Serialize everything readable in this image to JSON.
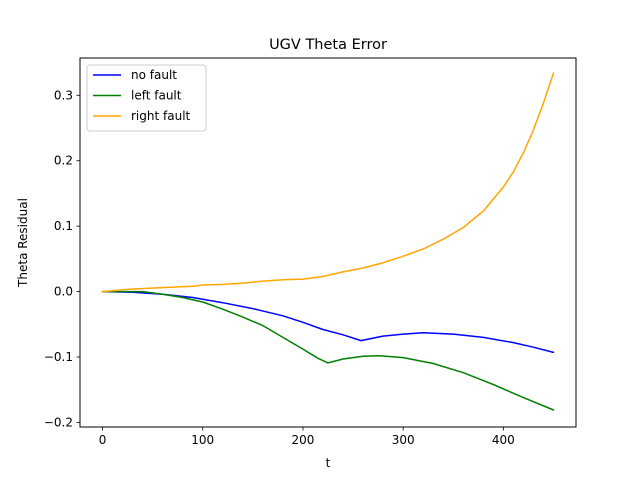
{
  "chart_data": {
    "type": "line",
    "title": "UGV Theta Error",
    "xlabel": "t",
    "ylabel": "Theta Residual",
    "xlim": [
      -22.5,
      472.5
    ],
    "ylim": [
      -0.207,
      0.357
    ],
    "xticks": [
      0,
      100,
      200,
      300,
      400
    ],
    "yticks": [
      -0.2,
      -0.1,
      0.0,
      0.1,
      0.2,
      0.3
    ],
    "ytick_labels": [
      "−0.2",
      "−0.1",
      "0.0",
      "0.1",
      "0.2",
      "0.3"
    ],
    "grid": false,
    "legend_position": "top-left",
    "series": [
      {
        "name": "no fault",
        "color": "#0000ff",
        "x": [
          0,
          30,
          60,
          90,
          120,
          150,
          180,
          200,
          220,
          240,
          258,
          280,
          300,
          320,
          350,
          380,
          410,
          430,
          450
        ],
        "y": [
          0.0,
          -0.001,
          -0.004,
          -0.009,
          -0.017,
          -0.026,
          -0.037,
          -0.047,
          -0.058,
          -0.066,
          -0.075,
          -0.068,
          -0.065,
          -0.063,
          -0.065,
          -0.07,
          -0.078,
          -0.085,
          -0.093
        ]
      },
      {
        "name": "left fault",
        "color": "#008000",
        "x": [
          0,
          20,
          40,
          60,
          80,
          100,
          120,
          140,
          160,
          180,
          200,
          215,
          225,
          240,
          260,
          275,
          300,
          330,
          360,
          390,
          420,
          450
        ],
        "y": [
          0.0,
          0.0,
          0.0,
          -0.004,
          -0.009,
          -0.016,
          -0.027,
          -0.039,
          -0.052,
          -0.07,
          -0.088,
          -0.102,
          -0.109,
          -0.103,
          -0.099,
          -0.098,
          -0.101,
          -0.11,
          -0.124,
          -0.142,
          -0.162,
          -0.181
        ]
      },
      {
        "name": "right fault",
        "color": "#ffa500",
        "x": [
          0,
          30,
          60,
          90,
          100,
          120,
          140,
          160,
          180,
          200,
          220,
          240,
          260,
          280,
          300,
          320,
          340,
          360,
          380,
          400,
          410,
          420,
          430,
          440,
          450
        ],
        "y": [
          0.0,
          0.004,
          0.006,
          0.008,
          0.01,
          0.011,
          0.013,
          0.016,
          0.018,
          0.019,
          0.023,
          0.03,
          0.036,
          0.044,
          0.054,
          0.065,
          0.08,
          0.098,
          0.123,
          0.16,
          0.183,
          0.212,
          0.247,
          0.288,
          0.334
        ]
      }
    ]
  }
}
